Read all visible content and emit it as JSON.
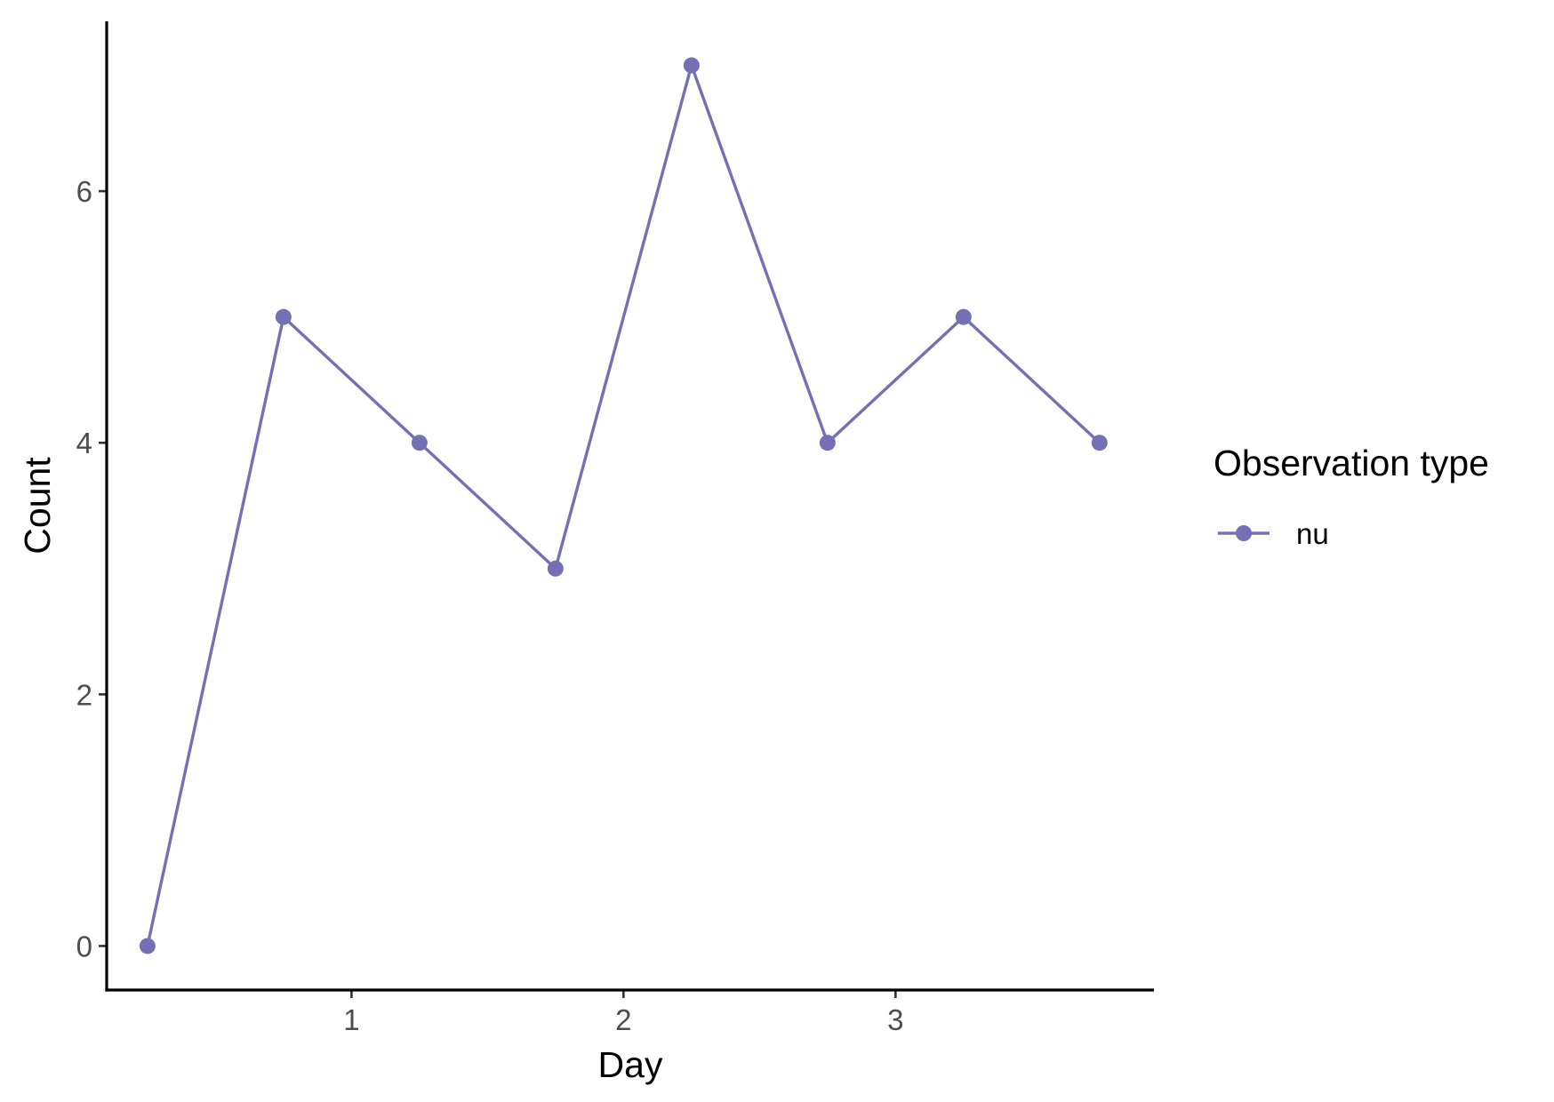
{
  "chart_data": {
    "type": "line",
    "xlabel": "Day",
    "ylabel": "Count",
    "x_ticks": [
      1,
      2,
      3
    ],
    "y_ticks": [
      0,
      2,
      4,
      6
    ],
    "xlim": [
      0.1,
      3.95
    ],
    "ylim": [
      -0.35,
      7.35
    ],
    "grid": false,
    "legend": {
      "title": "Observation type",
      "placement": "right"
    },
    "series": [
      {
        "name": "nu",
        "color": "#7570b3",
        "x": [
          0.25,
          0.75,
          1.25,
          1.75,
          2.25,
          2.75,
          3.25,
          3.75
        ],
        "y": [
          0,
          5,
          4,
          3,
          7,
          4,
          5,
          4
        ]
      }
    ]
  }
}
